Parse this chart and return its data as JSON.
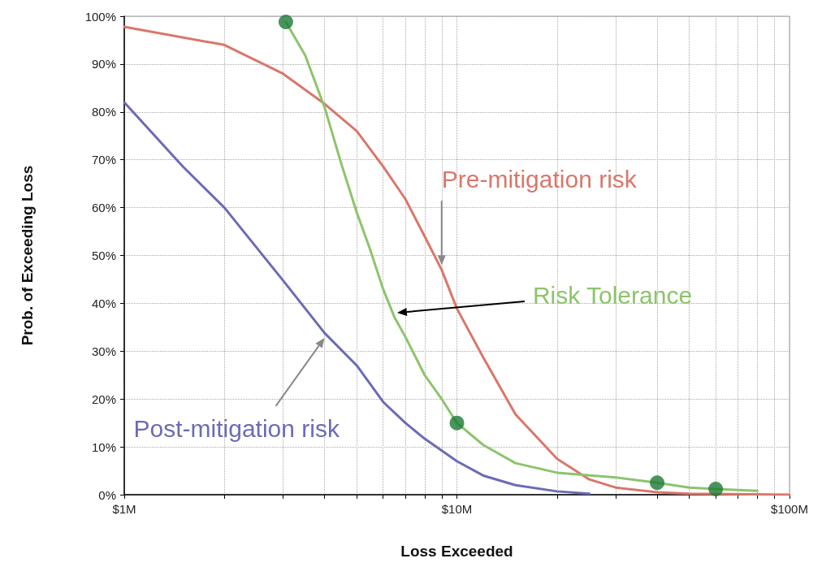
{
  "chart_data": {
    "type": "line",
    "xlabel": "Loss Exceeded",
    "ylabel": "Prob. of Exceeding Loss",
    "log": "x",
    "grid": true,
    "legend": false,
    "marker": "none",
    "line_style": "solid",
    "xlim": [
      1,
      100
    ],
    "xticks": [
      {
        "value": 1,
        "label": "$1M"
      },
      {
        "value": 2,
        "label": null
      },
      {
        "value": 3,
        "label": null
      },
      {
        "value": 4,
        "label": null
      },
      {
        "value": 5,
        "label": null
      },
      {
        "value": 6,
        "label": null
      },
      {
        "value": 7,
        "label": null
      },
      {
        "value": 8,
        "label": null
      },
      {
        "value": 9,
        "label": null
      },
      {
        "value": 10,
        "label": "$10M"
      },
      {
        "value": 20,
        "label": null
      },
      {
        "value": 30,
        "label": null
      },
      {
        "value": 40,
        "label": null
      },
      {
        "value": 50,
        "label": null
      },
      {
        "value": 60,
        "label": null
      },
      {
        "value": 70,
        "label": null
      },
      {
        "value": 80,
        "label": null
      },
      {
        "value": 90,
        "label": null
      },
      {
        "value": 100,
        "label": "$100M"
      }
    ],
    "ylim": [
      0,
      100
    ],
    "yticks": [
      {
        "value": 0,
        "label": "0%"
      },
      {
        "value": 10,
        "label": "10%"
      },
      {
        "value": 20,
        "label": "20%"
      },
      {
        "value": 30,
        "label": "30%"
      },
      {
        "value": 40,
        "label": "40%"
      },
      {
        "value": 50,
        "label": "50%"
      },
      {
        "value": 60,
        "label": "60%"
      },
      {
        "value": 70,
        "label": "70%"
      },
      {
        "value": 80,
        "label": "80%"
      },
      {
        "value": 90,
        "label": "90%"
      },
      {
        "value": 100,
        "label": "100%"
      }
    ],
    "series": [
      {
        "name": "Pre-mitigation risk",
        "color": "#d9776b",
        "x": [
          1,
          2,
          3,
          4,
          5,
          6,
          7,
          8,
          9,
          10,
          12,
          15,
          20,
          25,
          30,
          40,
          50,
          100
        ],
        "values": [
          97.8,
          94,
          88,
          81.7,
          76,
          68.6,
          61.8,
          54,
          47,
          38.9,
          28.7,
          16.8,
          7.5,
          3.2,
          1.5,
          0.5,
          0.2,
          0
        ]
      },
      {
        "name": "Risk Tolerance",
        "color": "#8cc46c",
        "x": [
          3.06,
          3.5,
          4,
          4.5,
          5,
          5.5,
          6,
          6.5,
          7,
          8,
          9,
          10,
          12,
          15,
          20,
          30,
          40,
          50,
          60,
          80
        ],
        "values": [
          98.8,
          91.8,
          81,
          69,
          59,
          51,
          43,
          37,
          33,
          25,
          20,
          15,
          10.4,
          6.6,
          4.6,
          3.6,
          2.5,
          1.5,
          1.2,
          0.8
        ]
      },
      {
        "name": "Post-mitigation risk",
        "color": "#6b6bb5",
        "x": [
          1,
          1.5,
          2,
          3,
          4,
          5,
          6,
          7,
          8,
          10,
          12,
          15,
          20,
          25
        ],
        "values": [
          82,
          68.6,
          60,
          44.8,
          33.8,
          27,
          19.4,
          15,
          11.7,
          7,
          4,
          2,
          0.7,
          0.2
        ]
      },
      {
        "type": "scatter",
        "color": "#1b7a35",
        "marker": "circle",
        "x": [
          3.06,
          10,
          40,
          60
        ],
        "values": [
          98.8,
          15,
          2.5,
          1.2
        ]
      }
    ]
  }
}
